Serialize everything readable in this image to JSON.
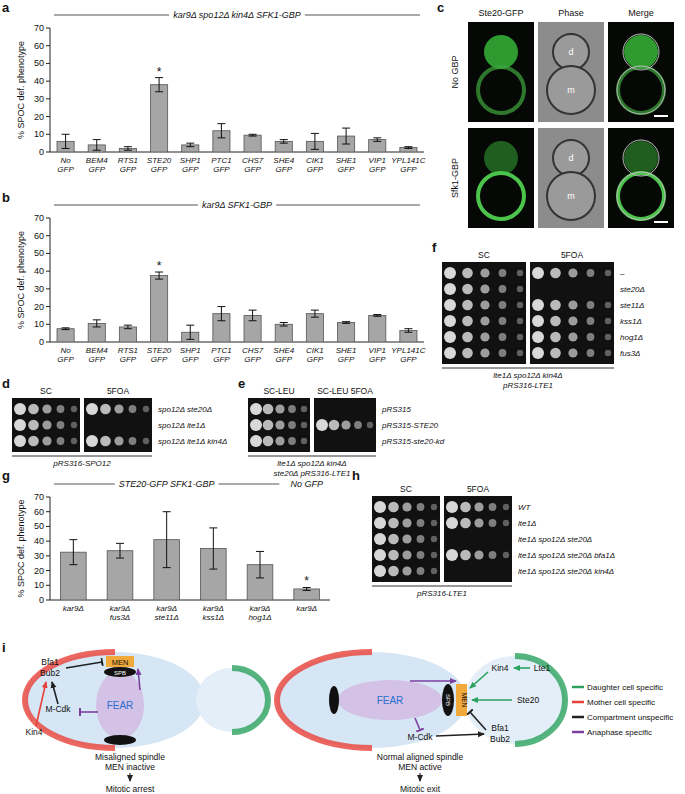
{
  "panel_labels": [
    "a",
    "b",
    "c",
    "d",
    "e",
    "f",
    "g",
    "h",
    "i"
  ],
  "chart_data": [
    {
      "type": "bar",
      "title": "kar9Δ spo12Δ kin4Δ SFK1-GBP",
      "ylabel": "% SPOC def. phenotype",
      "categories": [
        "No GFP",
        "BEM4 GFP",
        "RTS1 GFP",
        "STE20 GFP",
        "SHP1 GFP",
        "PTC1 GFP",
        "CHS7 GFP",
        "SHE4 GFP",
        "CIK1 GFP",
        "SHE1 GFP",
        "VIP1 GFP",
        "YPL141C GFP"
      ],
      "values": [
        6,
        4,
        2,
        38,
        4,
        12,
        9.5,
        6,
        6,
        9,
        7,
        2.5
      ],
      "errors": [
        4,
        3,
        1,
        4,
        1,
        4,
        0.5,
        1,
        4.5,
        4.5,
        1,
        0.5
      ],
      "significance": [
        null,
        null,
        null,
        "*",
        null,
        null,
        null,
        null,
        null,
        null,
        null,
        null
      ],
      "color": "#a6a6a6",
      "ylim": [
        0,
        70
      ],
      "yticks": [
        0,
        10,
        20,
        30,
        40,
        50,
        60,
        70
      ]
    },
    {
      "type": "bar",
      "title": "kar9Δ SFK1-GBP",
      "ylabel": "% SPOC def. phenotype",
      "categories": [
        "No GFP",
        "BEM4 GFP",
        "RTS1 GFP",
        "STE20 GFP",
        "SHP1 GFP",
        "PTC1 GFP",
        "CHS7 GFP",
        "SHE4 GFP",
        "CIK1 GFP",
        "SHE1 GFP",
        "VIP1 GFP",
        "YPL141C GFP"
      ],
      "values": [
        7.5,
        10.5,
        8.5,
        37.5,
        5.5,
        16,
        15,
        10,
        16,
        11,
        15,
        6.5
      ],
      "errors": [
        0.5,
        2,
        1,
        2,
        4,
        4,
        3,
        1,
        2,
        0.5,
        0.5,
        1
      ],
      "significance": [
        null,
        null,
        null,
        "*",
        null,
        null,
        null,
        null,
        null,
        null,
        null,
        null
      ],
      "color": "#a6a6a6",
      "ylim": [
        0,
        70
      ],
      "yticks": [
        0,
        10,
        20,
        30,
        40,
        50,
        60,
        70
      ]
    },
    {
      "type": "bar",
      "title": "STE20-GFP SFK1-GBP",
      "annotation": "No GFP",
      "ylabel": "% SPOC def. phenotype",
      "categories": [
        "kar9Δ",
        "kar9Δ fus3Δ",
        "kar9Δ ste11Δ",
        "kar9Δ kss1Δ",
        "kar9Δ hog1Δ",
        "kar9Δ"
      ],
      "values": [
        32.5,
        33.5,
        41,
        35,
        24,
        7.5
      ],
      "errors": [
        8.5,
        5,
        19,
        14,
        9,
        1
      ],
      "significance": [
        null,
        null,
        null,
        null,
        null,
        "*"
      ],
      "color": "#a6a6a6",
      "ylim": [
        0,
        70
      ],
      "yticks": [
        0,
        10,
        20,
        30,
        40,
        50,
        60,
        70
      ]
    }
  ],
  "microscopy": {
    "columns": [
      "Ste20-GFP",
      "Phase",
      "Merge"
    ],
    "rows": [
      "No GBP",
      "Sfk1-GBP"
    ],
    "cell_labels": [
      "d",
      "m"
    ]
  },
  "spot_assays": [
    {
      "media": [
        "SC",
        "5FOA"
      ],
      "strains": [
        "spo12Δ ste20Δ",
        "spo12Δ lte1Δ",
        "spo12Δ lte1Δ kin4Δ"
      ],
      "growth": [
        [
          5,
          5
        ],
        [
          5,
          0
        ],
        [
          5,
          5
        ]
      ],
      "footer": [
        "pRS316-SPO12"
      ]
    },
    {
      "media": [
        "SC-LEU",
        "SC-LEU 5FOA"
      ],
      "strains": [
        "pRS315",
        "pRS315-STE20",
        "pRS315-ste20-kd"
      ],
      "growth": [
        [
          5,
          0
        ],
        [
          5,
          5
        ],
        [
          5,
          0
        ]
      ],
      "footer": [
        "lte1Δ spo12Δ kin4Δ",
        "ste20Δ pRS316-LTE1"
      ]
    },
    {
      "media": [
        "SC",
        "5FOA"
      ],
      "strains": [
        "–",
        "ste20Δ",
        "ste11Δ",
        "kss1Δ",
        "hog1Δ",
        "fus3Δ"
      ],
      "growth": [
        [
          5,
          5
        ],
        [
          5,
          0
        ],
        [
          5,
          5
        ],
        [
          5,
          5
        ],
        [
          5,
          5
        ],
        [
          5,
          5
        ]
      ],
      "footer": [
        "lte1Δ spo12Δ kin4Δ",
        "pRS316-LTE1"
      ]
    },
    {
      "media": [
        "SC",
        "5FOA"
      ],
      "strains": [
        "WT",
        "lte1Δ",
        "lte1Δ spo12Δ ste20Δ",
        "lte1Δ spo12Δ ste20Δ bfa1Δ",
        "lte1Δ spo12Δ ste20Δ kin4Δ"
      ],
      "growth": [
        [
          5,
          5
        ],
        [
          5,
          5
        ],
        [
          5,
          0
        ],
        [
          5,
          5
        ],
        [
          5,
          0
        ]
      ],
      "footer": [
        "pRS316-LTE1"
      ]
    }
  ],
  "diagram": {
    "left": {
      "nodes": [
        "Kin4",
        "Bfa1",
        "Bub2",
        "MEN",
        "SPB",
        "M-Cdk",
        "FEAR"
      ],
      "caption": [
        "Misaligned spindle",
        "MEN inactive"
      ],
      "outcome": "Mitotic arrest"
    },
    "right": {
      "nodes": [
        "Kin4",
        "Lte1",
        "Ste20",
        "MEN",
        "SPB",
        "Bfa1",
        "Bub2",
        "M-Cdk",
        "FEAR"
      ],
      "caption": [
        "Normal aligned spindle",
        "MEN active"
      ],
      "outcome": "Mitotic exit"
    },
    "legend": [
      {
        "text": "Daughter cell specific",
        "color": "#2ca25f"
      },
      {
        "text": "Mother cell specific",
        "color": "#e8413a"
      },
      {
        "text": "Compartment unspecific",
        "color": "#222222"
      },
      {
        "text": "Anaphase specific",
        "color": "#7b3fa0"
      }
    ]
  }
}
